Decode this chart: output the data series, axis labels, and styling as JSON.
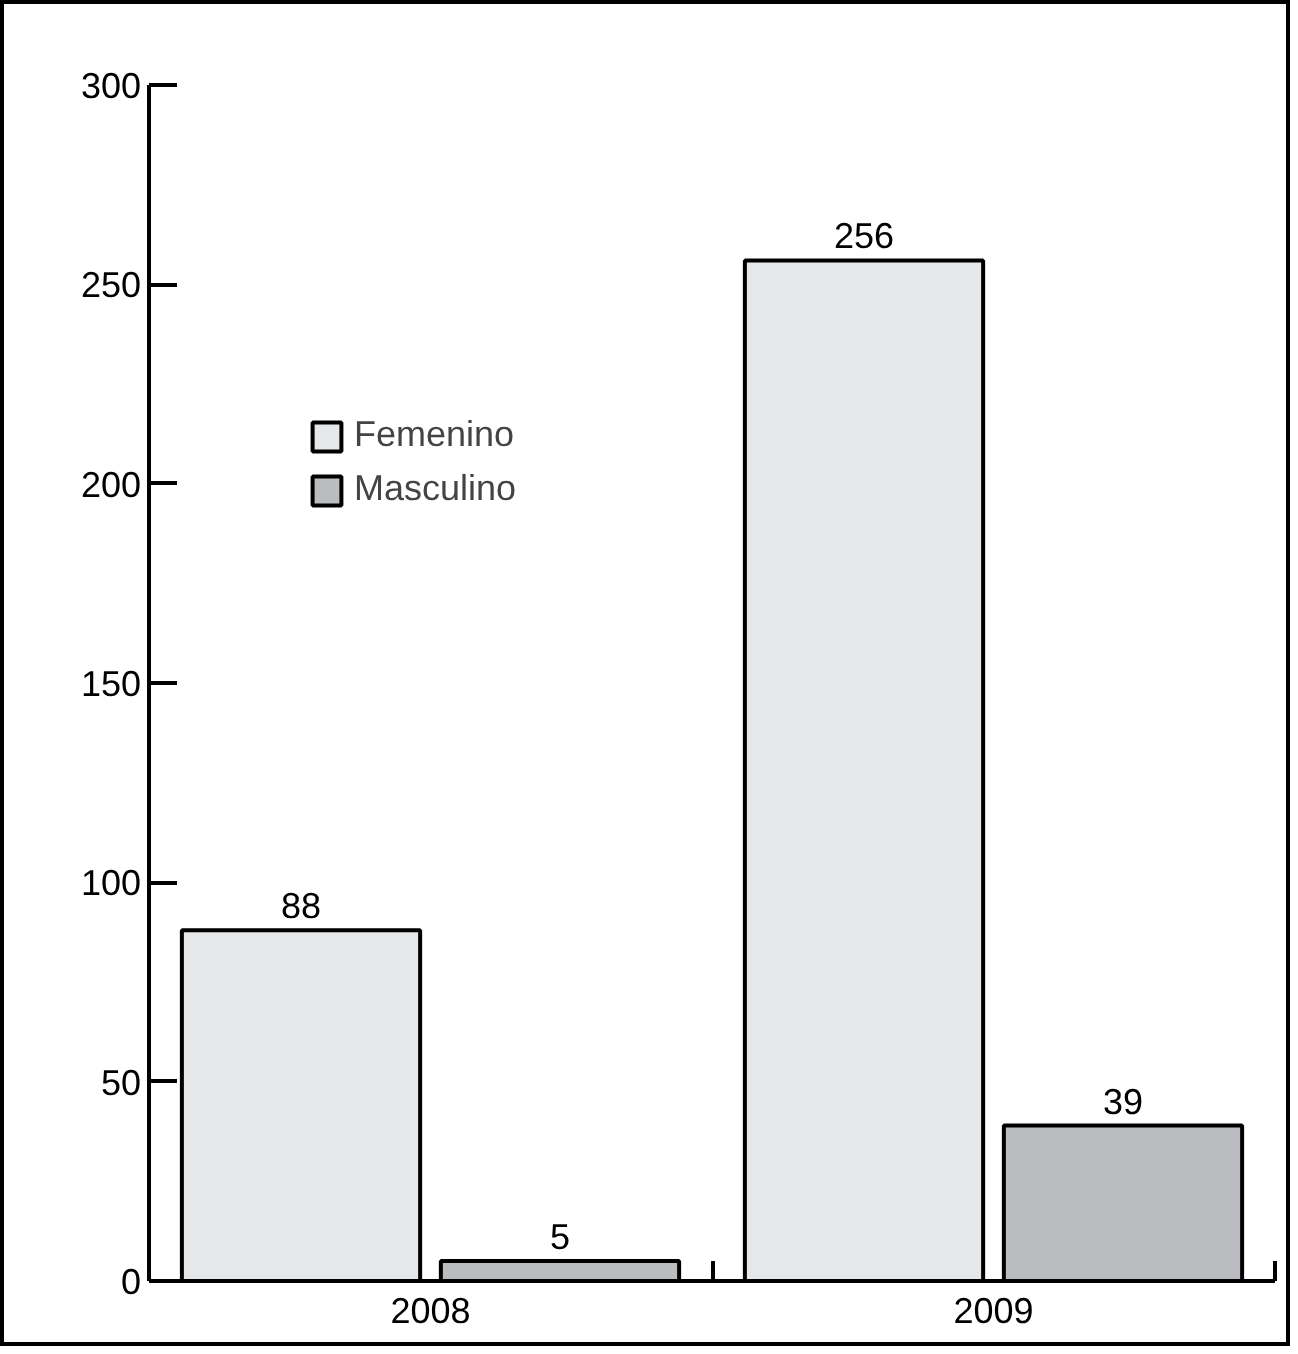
{
  "chart_data": {
    "type": "bar",
    "categories": [
      "2008",
      "2009"
    ],
    "series": [
      {
        "name": "Femenino",
        "color": "#e6e7e8",
        "values": [
          88,
          256
        ]
      },
      {
        "name": "Masculino",
        "color": "#bbbcbf",
        "values": [
          5,
          39
        ]
      }
    ],
    "ylim": [
      0,
      300
    ],
    "yticks": [
      0,
      50,
      100,
      150,
      200,
      250,
      300
    ],
    "data_labels": true,
    "grid": false,
    "legend": "top left"
  }
}
